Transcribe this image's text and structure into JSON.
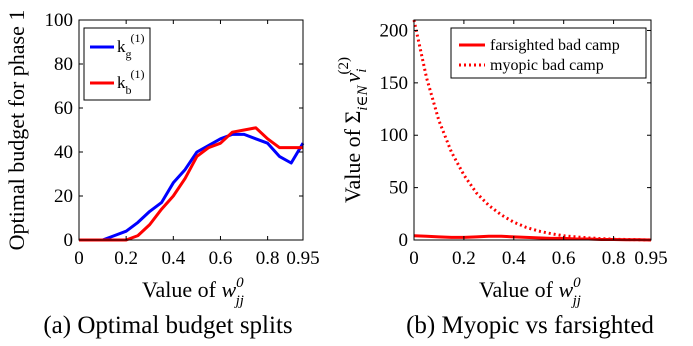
{
  "chart_data": [
    {
      "type": "line",
      "title": "",
      "caption": "(a) Optimal budget splits",
      "xlabel": "Value of w_jj^0",
      "xlabel_parts": {
        "prefix": "Value of ",
        "base": "w",
        "sup": "0",
        "sub": "jj"
      },
      "ylabel": "Optimal budget for phase 1",
      "xlim": [
        0,
        0.95
      ],
      "ylim": [
        0,
        100
      ],
      "xticks": [
        "0",
        "0.2",
        "0.4",
        "0.6",
        "0.8",
        "0.95"
      ],
      "xtick_values": [
        0,
        0.2,
        0.4,
        0.6,
        0.8,
        0.95
      ],
      "yticks": [
        "0",
        "20",
        "40",
        "60",
        "80",
        "100"
      ],
      "ytick_values": [
        0,
        20,
        40,
        60,
        80,
        100
      ],
      "grid": false,
      "legend": "top-left",
      "x": [
        0,
        0.05,
        0.1,
        0.15,
        0.2,
        0.25,
        0.3,
        0.35,
        0.4,
        0.45,
        0.5,
        0.55,
        0.6,
        0.65,
        0.7,
        0.75,
        0.8,
        0.85,
        0.9,
        0.95
      ],
      "series": [
        {
          "name": "k_g^(1)",
          "label_parts": {
            "base": "k",
            "sub": "g",
            "sup": "(1)"
          },
          "color": "#0000ff",
          "values": [
            0,
            0,
            0,
            2,
            4,
            8,
            13,
            17,
            26,
            32,
            40,
            43,
            46,
            48,
            48,
            46,
            44,
            38,
            35,
            44
          ]
        },
        {
          "name": "k_b^(1)",
          "label_parts": {
            "base": "k",
            "sub": "b",
            "sup": "(1)"
          },
          "color": "#ff0000",
          "values": [
            0,
            0,
            0,
            0,
            0,
            2,
            7,
            14,
            20,
            28,
            38,
            42,
            44,
            49,
            50,
            51,
            46,
            42,
            42,
            42
          ]
        }
      ]
    },
    {
      "type": "line",
      "title": "",
      "caption": "(b) Myopic vs farsighted",
      "xlabel": "Value of w_jj^0",
      "xlabel_parts": {
        "prefix": "Value of ",
        "base": "w",
        "sup": "0",
        "sub": "jj"
      },
      "ylabel": "Value of Σ_{i∈N} v_i^(2)",
      "ylabel_parts": {
        "prefix": "Value of Σ",
        "sum_sub": "i∈N",
        "base": "v",
        "sub": "i",
        "sup": "(2)"
      },
      "xlim": [
        0,
        0.95
      ],
      "ylim": [
        0,
        210
      ],
      "xticks": [
        "0",
        "0.2",
        "0.4",
        "0.6",
        "0.8",
        "0.95"
      ],
      "xtick_values": [
        0,
        0.2,
        0.4,
        0.6,
        0.8,
        0.95
      ],
      "yticks": [
        "0",
        "50",
        "100",
        "150",
        "200"
      ],
      "ytick_values": [
        0,
        50,
        100,
        150,
        200
      ],
      "grid": false,
      "legend": "top-right",
      "x": [
        0,
        0.05,
        0.1,
        0.15,
        0.2,
        0.25,
        0.3,
        0.35,
        0.4,
        0.45,
        0.5,
        0.55,
        0.6,
        0.65,
        0.7,
        0.75,
        0.8,
        0.85,
        0.9,
        0.95
      ],
      "series": [
        {
          "name": "farsighted bad camp",
          "color": "#ff0000",
          "dash": "solid",
          "values": [
            4,
            3.5,
            3,
            2.5,
            2.5,
            3,
            3.5,
            3.5,
            3,
            2.5,
            2,
            1.5,
            1.5,
            1,
            1,
            0.5,
            0.5,
            0.3,
            0.2,
            0
          ]
        },
        {
          "name": "myopic bad camp",
          "color": "#ff0000",
          "dash": "dotted",
          "values": [
            210,
            155,
            114,
            84,
            62,
            45,
            33,
            24,
            17,
            12,
            8.5,
            6,
            4,
            3,
            2,
            1.3,
            0.8,
            0.5,
            0.3,
            0
          ]
        }
      ]
    }
  ]
}
